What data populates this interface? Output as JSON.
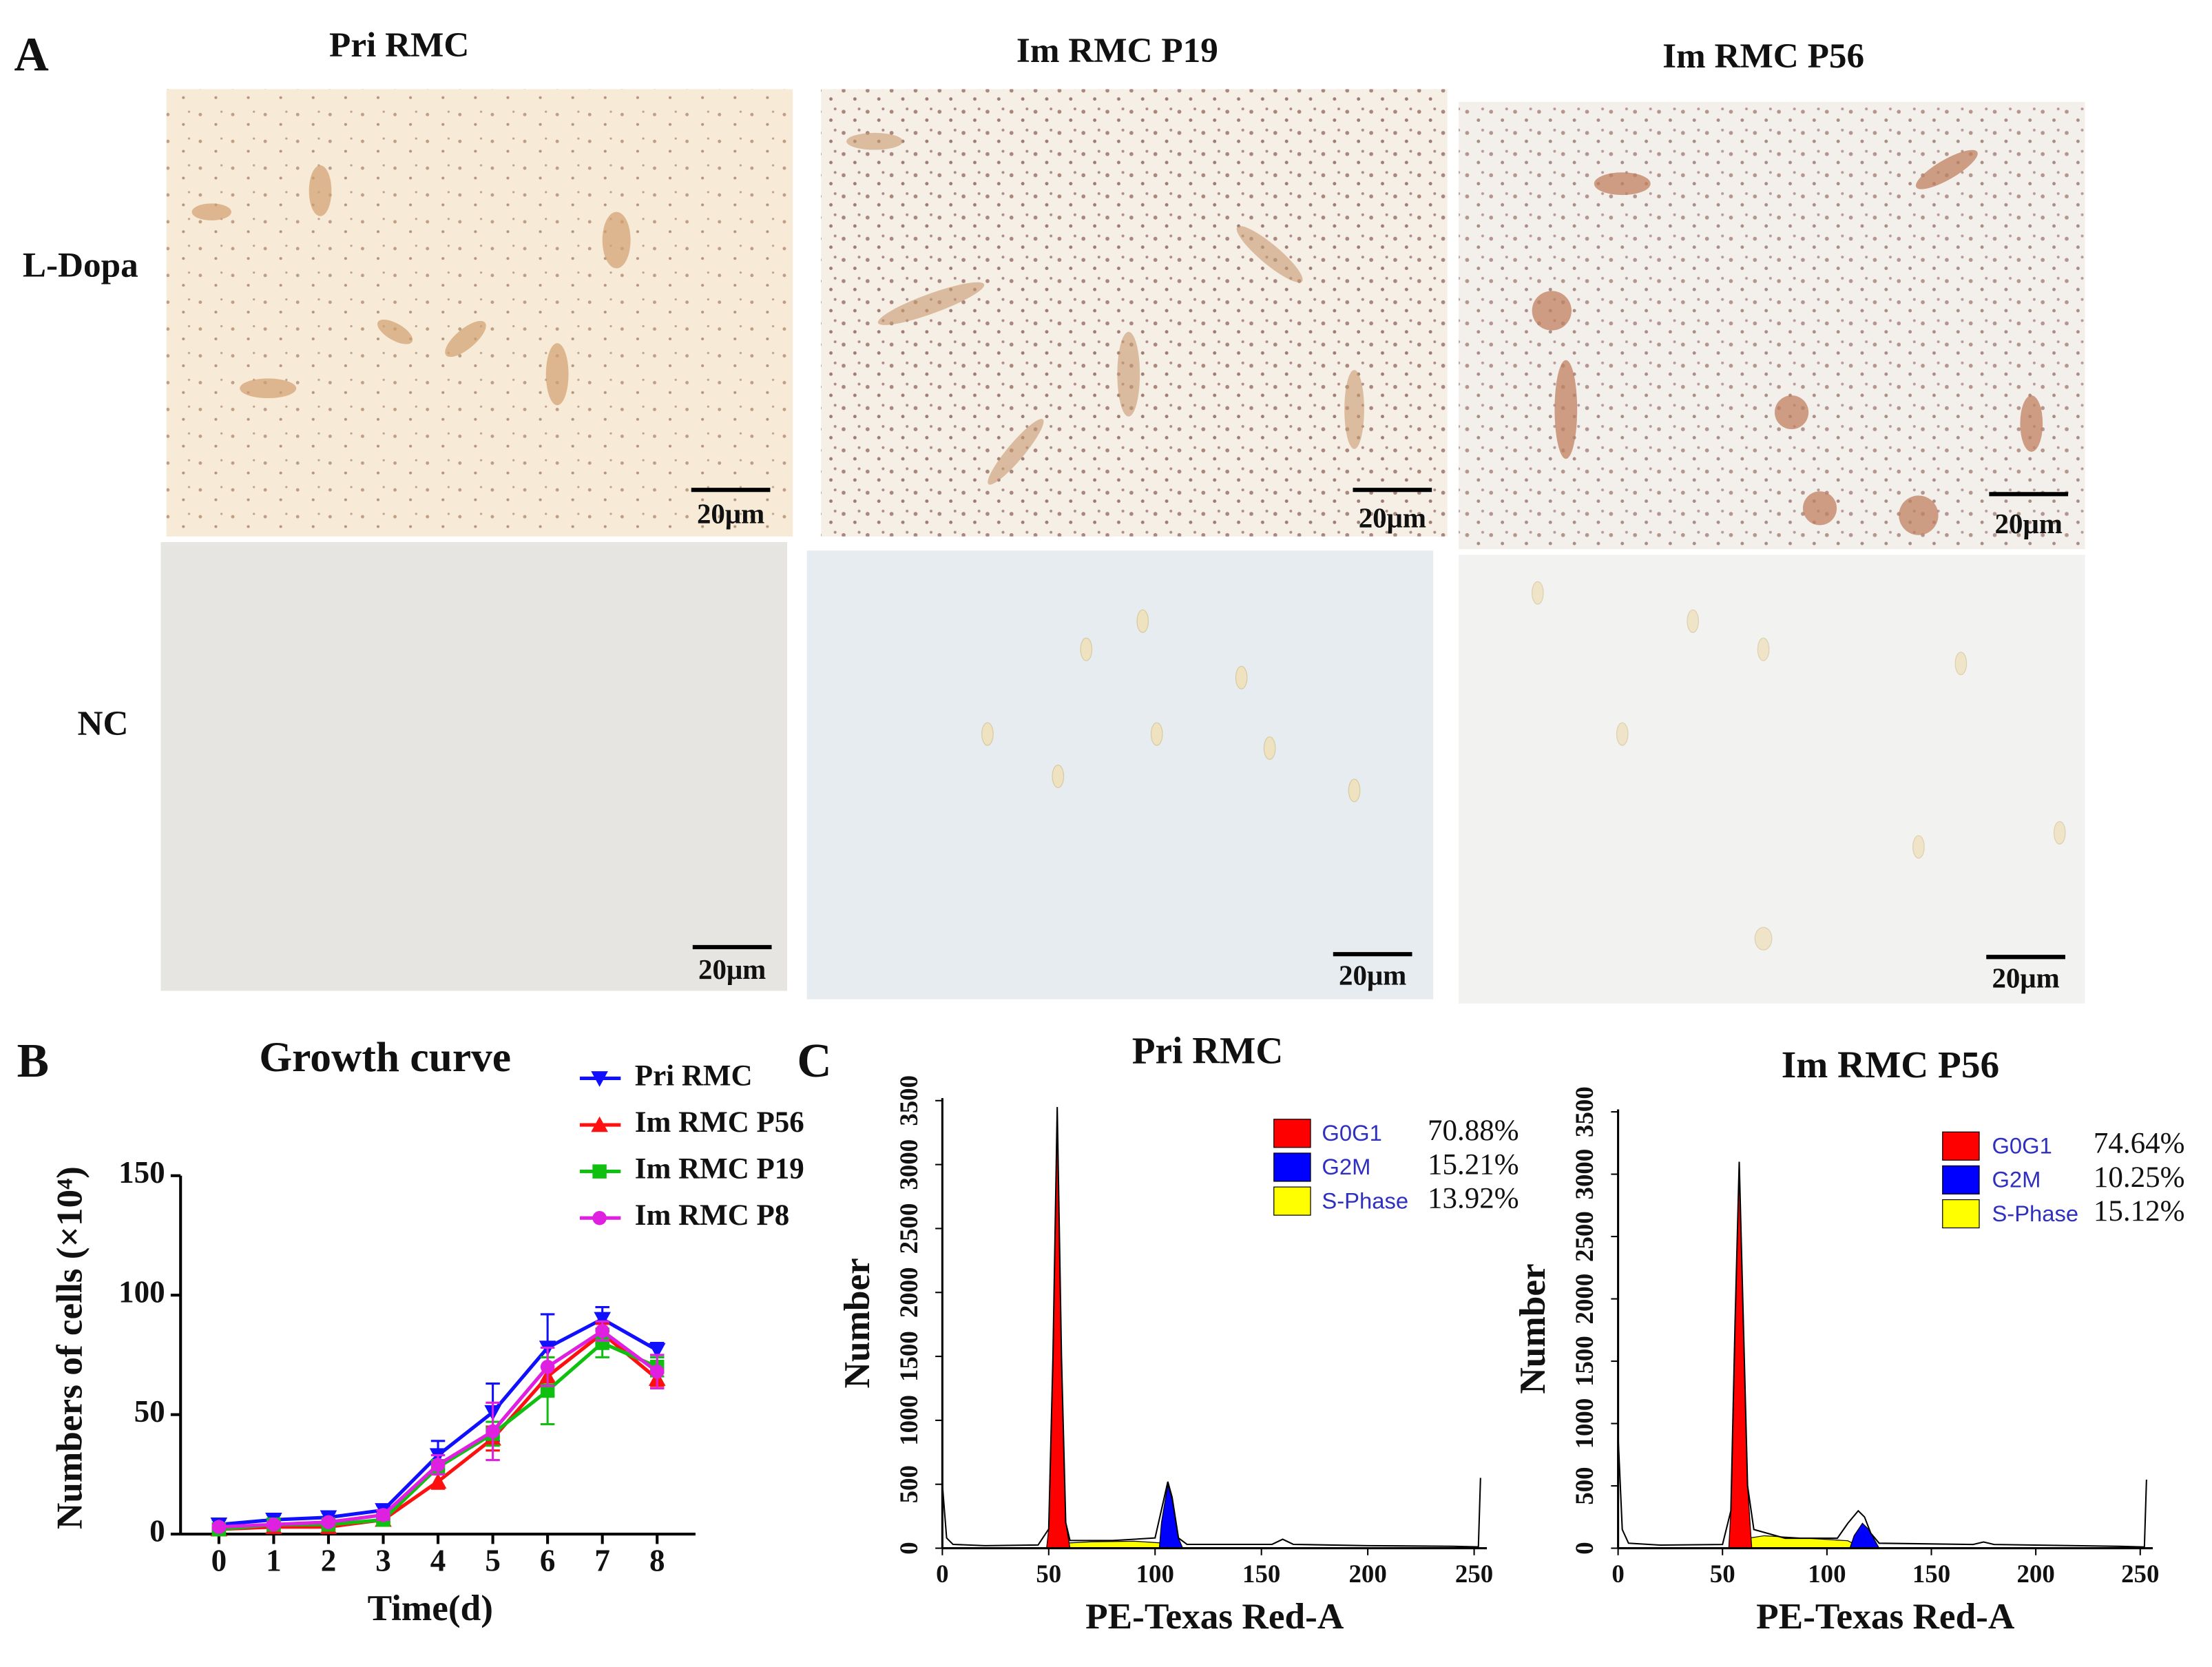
{
  "panels": {
    "a": "A",
    "b": "B",
    "c": "C"
  },
  "micrographs": {
    "columns": [
      "Pri RMC",
      "Im RMC P19",
      "Im RMC P56"
    ],
    "rows": [
      "L-Dopa",
      "NC"
    ],
    "scale_bars": [
      "20μm",
      "20μm",
      "20μm",
      "20μm",
      "20μm",
      "20μm"
    ]
  },
  "chart_data": [
    {
      "type": "line",
      "title": "Growth curve",
      "xlabel": "Time(d)",
      "ylabel": "Numbers of cells (×10⁴)",
      "x": [
        0,
        1,
        2,
        3,
        4,
        5,
        6,
        7,
        8
      ],
      "xlim": [
        -0.7,
        8.7
      ],
      "xticks": [
        0,
        1,
        2,
        3,
        4,
        5,
        6,
        7,
        8
      ],
      "ylim": [
        0,
        150
      ],
      "yticks": [
        0,
        50,
        100,
        150
      ],
      "series": [
        {
          "name": "Pri RMC",
          "color": "#1010ff",
          "marker": "triangle-down",
          "values": [
            4,
            6,
            7,
            10,
            33,
            51,
            78,
            90,
            77
          ],
          "errors": [
            2,
            2,
            2,
            2,
            6,
            12,
            14,
            5,
            3
          ]
        },
        {
          "name": "Im RMC P56",
          "color": "#ff1010",
          "marker": "triangle-up",
          "values": [
            2,
            3,
            3,
            6,
            22,
            40,
            66,
            84,
            65
          ],
          "errors": [
            1,
            1,
            1,
            1,
            3,
            5,
            8,
            4,
            3
          ]
        },
        {
          "name": "Im RMC P19",
          "color": "#10c010",
          "marker": "square",
          "values": [
            2,
            4,
            4,
            6,
            28,
            42,
            60,
            80,
            70
          ],
          "errors": [
            1,
            1,
            1,
            1,
            3,
            5,
            14,
            6,
            4
          ]
        },
        {
          "name": "Im RMC P8",
          "color": "#e020e0",
          "marker": "circle",
          "values": [
            3,
            4,
            5,
            8,
            29,
            43,
            70,
            85,
            68
          ],
          "errors": [
            1,
            1,
            1,
            2,
            4,
            12,
            8,
            4,
            7
          ]
        }
      ]
    },
    {
      "type": "area",
      "title": "Pri RMC",
      "xlabel": "PE-Texas Red-A",
      "ylabel": "Number",
      "xlim": [
        0,
        256
      ],
      "xticks": [
        0,
        50,
        100,
        150,
        200,
        250
      ],
      "ylim": [
        0,
        3520
      ],
      "yticks": [
        0,
        500,
        1000,
        1500,
        2000,
        2500,
        3000,
        3500
      ],
      "outline": {
        "color": "#000000",
        "x": [
          0,
          2,
          5,
          20,
          45,
          50,
          52,
          54,
          56,
          58,
          60,
          80,
          100,
          103,
          106,
          108,
          111,
          115,
          155,
          160,
          165,
          200,
          240,
          252,
          253
        ],
        "values": [
          500,
          80,
          30,
          20,
          25,
          150,
          1500,
          3450,
          1500,
          200,
          60,
          60,
          80,
          300,
          520,
          400,
          80,
          30,
          30,
          70,
          30,
          20,
          15,
          10,
          550
        ]
      },
      "series": [
        {
          "name": "G0G1",
          "color": "#ff0000",
          "share": 70.88,
          "share_label": "70.88%",
          "x": [
            49,
            50,
            52,
            54,
            56,
            58,
            60
          ],
          "values": [
            0,
            150,
            1500,
            3450,
            1500,
            200,
            0
          ]
        },
        {
          "name": "G2M",
          "color": "#0000ff",
          "share": 15.21,
          "share_label": "15.21%",
          "x": [
            102,
            103,
            106,
            108,
            111,
            113
          ],
          "values": [
            0,
            200,
            500,
            380,
            80,
            0
          ]
        },
        {
          "name": "S-Phase",
          "color": "#ffff00",
          "share": 13.92,
          "share_label": "13.92%",
          "x": [
            55,
            58,
            70,
            90,
            104,
            110
          ],
          "values": [
            0,
            40,
            50,
            55,
            40,
            0
          ]
        }
      ]
    },
    {
      "type": "area",
      "title": "Im RMC P56",
      "xlabel": "PE-Texas Red-A",
      "ylabel": "Number",
      "xlim": [
        0,
        256
      ],
      "xticks": [
        0,
        50,
        100,
        150,
        200,
        250
      ],
      "ylim": [
        0,
        3520
      ],
      "yticks": [
        0,
        500,
        1000,
        1500,
        2000,
        2500,
        3000,
        3500
      ],
      "outline": {
        "color": "#000000",
        "x": [
          0,
          2,
          5,
          20,
          50,
          54,
          56,
          58,
          60,
          62,
          65,
          80,
          105,
          110,
          115,
          118,
          121,
          125,
          170,
          175,
          180,
          240,
          252,
          253
        ],
        "values": [
          900,
          150,
          40,
          25,
          30,
          300,
          1800,
          3100,
          1800,
          500,
          150,
          80,
          80,
          200,
          300,
          250,
          120,
          40,
          30,
          50,
          30,
          15,
          10,
          550
        ]
      },
      "series": [
        {
          "name": "G0G1",
          "color": "#ff0000",
          "share": 74.64,
          "share_label": "74.64%",
          "x": [
            53,
            54,
            56,
            58,
            60,
            62,
            64
          ],
          "values": [
            0,
            300,
            1800,
            3050,
            1800,
            500,
            0
          ]
        },
        {
          "name": "G2M",
          "color": "#0000ff",
          "share": 10.25,
          "share_label": "10.25%",
          "x": [
            111,
            113,
            117,
            120,
            123,
            125
          ],
          "values": [
            0,
            100,
            200,
            150,
            60,
            0
          ]
        },
        {
          "name": "S-Phase",
          "color": "#ffff00",
          "share": 15.12,
          "share_label": "15.12%",
          "x": [
            58,
            62,
            70,
            90,
            110,
            117
          ],
          "values": [
            0,
            80,
            100,
            80,
            60,
            0
          ]
        }
      ]
    }
  ]
}
